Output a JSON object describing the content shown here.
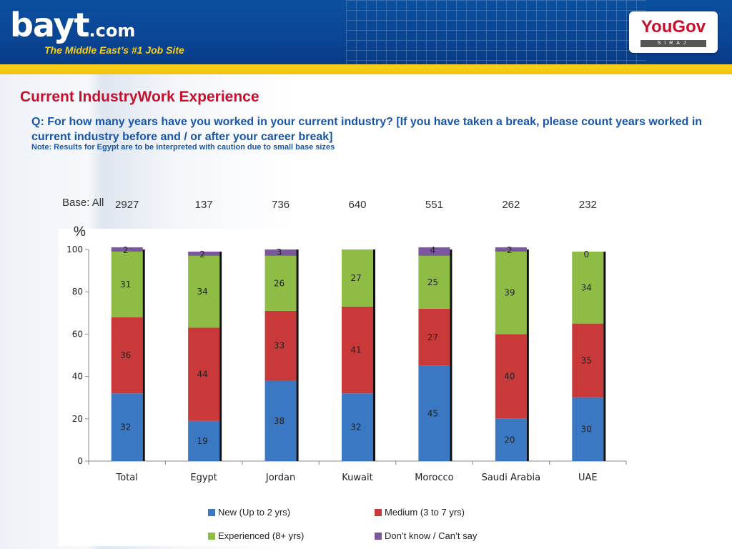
{
  "header": {
    "logo_main": "bayt",
    "logo_suffix": ".com",
    "tagline": "The Middle East’s #1 Job Site",
    "partner_logo": "YouGov",
    "partner_sub": "SIRAJ"
  },
  "slide": {
    "title": "Current IndustryWork Experience",
    "question": "Q: For how many years have you worked in your current industry? [If you have taken a break, please count years worked in current industry before and / or after your career break]",
    "note": "Note: Results for Egypt are to be interpreted with caution due to small base sizes",
    "base_label": "Base: All",
    "base_counts": [
      "2927",
      "137",
      "736",
      "640",
      "551",
      "262",
      "232"
    ],
    "unit_label": "%"
  },
  "chart_data": {
    "type": "bar",
    "stacked": true,
    "categories": [
      "Total",
      "Egypt",
      "Jordan",
      "Kuwait",
      "Morocco",
      "Saudi Arabia",
      "UAE"
    ],
    "series": [
      {
        "name": "New (Up to 2 yrs)",
        "color": "#3a78c3",
        "values": [
          32,
          19,
          38,
          32,
          45,
          20,
          30
        ]
      },
      {
        "name": "Medium (3 to 7 yrs)",
        "color": "#c9393a",
        "values": [
          36,
          44,
          33,
          41,
          27,
          40,
          35
        ]
      },
      {
        "name": "Experienced (8+ yrs)",
        "color": "#8fbc45",
        "values": [
          31,
          34,
          26,
          27,
          25,
          39,
          34
        ]
      },
      {
        "name": "Don’t know / Can’t say",
        "color": "#7b579e",
        "values": [
          2,
          2,
          3,
          null,
          4,
          2,
          0
        ]
      }
    ],
    "ylim": [
      0,
      100
    ],
    "yticks": [
      0,
      20,
      40,
      60,
      80,
      100
    ],
    "legend_position": "bottom",
    "grid": false
  }
}
